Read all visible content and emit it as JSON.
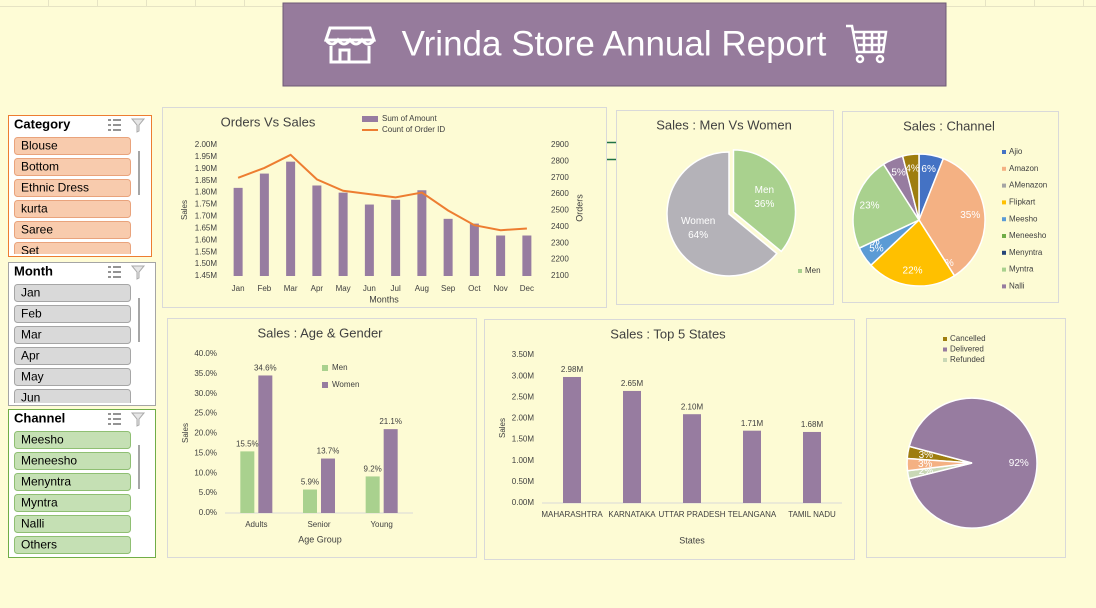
{
  "header": {
    "title": "Vrinda Store Annual Report"
  },
  "slicers": [
    {
      "title": "Category",
      "items": [
        "Blouse",
        "Bottom",
        "Ethnic Dress",
        "kurta",
        "Saree",
        "Set"
      ],
      "color": "#f8cbad",
      "border": "#e9a37c"
    },
    {
      "title": "Month",
      "items": [
        "Jan",
        "Feb",
        "Mar",
        "Apr",
        "May",
        "Jun"
      ],
      "color": "#d9d9d9",
      "border": "#a6a6a6"
    },
    {
      "title": "Channel",
      "items": [
        "Meesho",
        "Meneesho",
        "Menyntra",
        "Myntra",
        "Nalli",
        "Others"
      ],
      "color": "#c5e0b4",
      "border": "#8fbf73"
    }
  ],
  "chart_data": [
    {
      "type": "bar",
      "title": "Orders Vs Sales",
      "categories": [
        "Jan",
        "Feb",
        "Mar",
        "Apr",
        "May",
        "Jun",
        "Jul",
        "Aug",
        "Sep",
        "Oct",
        "Nov",
        "Dec"
      ],
      "series": [
        {
          "name": "Sum of Amount",
          "type": "bar",
          "color": "#977ca0",
          "values": [
            1820000,
            1880000,
            1930000,
            1830000,
            1800000,
            1750000,
            1770000,
            1810000,
            1690000,
            1670000,
            1620000,
            1620000
          ]
        },
        {
          "name": "Count of Order ID",
          "type": "line",
          "axis": "y2",
          "color": "#ed7d31",
          "values": [
            2700,
            2760,
            2840,
            2690,
            2620,
            2600,
            2580,
            2610,
            2500,
            2410,
            2380,
            2390
          ]
        }
      ],
      "ylim": [
        1450000,
        2000000
      ],
      "yticks": [
        {
          "value": 1450000,
          "label": "1.45M"
        },
        {
          "value": 1500000,
          "label": "1.50M"
        },
        {
          "value": 1550000,
          "label": "1.55M"
        },
        {
          "value": 1600000,
          "label": "1.60M"
        },
        {
          "value": 1650000,
          "label": "1.65M"
        },
        {
          "value": 1700000,
          "label": "1.70M"
        },
        {
          "value": 1750000,
          "label": "1.75M"
        },
        {
          "value": 1800000,
          "label": "1.80M"
        },
        {
          "value": 1850000,
          "label": "1.85M"
        },
        {
          "value": 1900000,
          "label": "1.90M"
        },
        {
          "value": 1950000,
          "label": "1.95M"
        },
        {
          "value": 2000000,
          "label": "2.00M"
        }
      ],
      "y2lim": [
        2100,
        2900
      ],
      "y2ticks": [
        2100,
        2200,
        2300,
        2400,
        2500,
        2600,
        2700,
        2800,
        2900
      ],
      "xlabel": "Months",
      "ylabel": "Sales",
      "y2label": "Orders"
    },
    {
      "type": "pie",
      "title": "Sales : Men Vs Women",
      "categories": [
        "Men",
        "Women"
      ],
      "values": [
        36,
        64
      ],
      "value_labels": [
        "36%",
        "64%"
      ],
      "colors": [
        "#a9d18e",
        "#b4b2b8"
      ]
    },
    {
      "type": "pie",
      "title": "Sales : Channel",
      "categories": [
        "Ajio",
        "Amazon",
        "AMenazon",
        "Flipkart",
        "Meesho",
        "Meneesho",
        "Menyntra",
        "Myntra",
        "Nalli",
        null
      ],
      "values": [
        6,
        35,
        0,
        22,
        5,
        0,
        0,
        23,
        5,
        4
      ],
      "value_labels": [
        "6%",
        "35%",
        "0%",
        "22%",
        "5%",
        "0%",
        "0%",
        "23%",
        "5%",
        "4%"
      ],
      "colors": [
        "#4472c4",
        "#f4b183",
        "#a5a5a5",
        "#ffc000",
        "#5b9bd5",
        "#70ad47",
        "#264478",
        "#a9d18e",
        "#977ca0",
        "#9e7d0e"
      ]
    },
    {
      "type": "bar",
      "title": "Sales : Age & Gender",
      "categories": [
        "Adults",
        "Senior",
        "Young"
      ],
      "series": [
        {
          "name": "Men",
          "color": "#a9d18e",
          "values": [
            15.5,
            5.9,
            9.2
          ],
          "value_labels": [
            "15.5%",
            "5.9%",
            "9.2%"
          ]
        },
        {
          "name": "Women",
          "color": "#977ca0",
          "values": [
            34.6,
            13.7,
            21.1
          ],
          "value_labels": [
            "34.6%",
            "13.7%",
            "21.1%"
          ]
        }
      ],
      "ylim": [
        0,
        40
      ],
      "yticks": [
        {
          "value": 0,
          "label": "0.0%"
        },
        {
          "value": 5,
          "label": "5.0%"
        },
        {
          "value": 10,
          "label": "10.0%"
        },
        {
          "value": 15,
          "label": "15.0%"
        },
        {
          "value": 20,
          "label": "20.0%"
        },
        {
          "value": 25,
          "label": "25.0%"
        },
        {
          "value": 30,
          "label": "30.0%"
        },
        {
          "value": 35,
          "label": "35.0%"
        },
        {
          "value": 40,
          "label": "40.0%"
        }
      ],
      "xlabel": "Age Group",
      "ylabel": "Sales"
    },
    {
      "type": "bar",
      "title": "Sales : Top 5 States",
      "categories": [
        "MAHARASHTRA",
        "KARNATAKA",
        "UTTAR PRADESH",
        "TELANGANA",
        "TAMIL NADU"
      ],
      "values": [
        2980000,
        2650000,
        2100000,
        1710000,
        1680000
      ],
      "value_labels": [
        "2.98M",
        "2.65M",
        "2.10M",
        "1.71M",
        "1.68M"
      ],
      "color": "#977ca0",
      "ylim": [
        0,
        3500000
      ],
      "yticks": [
        {
          "value": 0,
          "label": "0.00M"
        },
        {
          "value": 500000,
          "label": "0.50M"
        },
        {
          "value": 1000000,
          "label": "1.00M"
        },
        {
          "value": 1500000,
          "label": "1.50M"
        },
        {
          "value": 2000000,
          "label": "2.00M"
        },
        {
          "value": 2500000,
          "label": "2.50M"
        },
        {
          "value": 3000000,
          "label": "3.00M"
        },
        {
          "value": 3500000,
          "label": "3.50M"
        }
      ],
      "xlabel": "States",
      "ylabel": "Sales"
    },
    {
      "type": "pie",
      "categories": [
        "Cancelled",
        "Delivered",
        "Refunded",
        null
      ],
      "values": [
        3,
        92,
        2,
        3
      ],
      "value_labels": [
        "3%",
        "92%",
        "2%",
        "3%"
      ],
      "colors": [
        "#9e7d0e",
        "#977ca0",
        "#c9d8b6",
        "#f4b183"
      ]
    }
  ]
}
